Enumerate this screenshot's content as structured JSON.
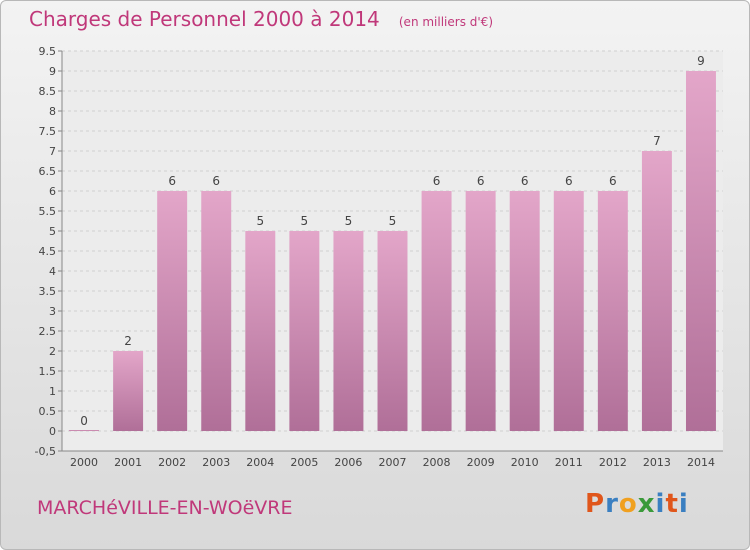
{
  "header": {
    "title": "Charges de Personnel 2000 à 2014",
    "unit": "(en milliers d'€)"
  },
  "footer": {
    "commune": "MARCHéVILLE-EN-WOëVRE",
    "logo": {
      "letters": [
        "P",
        "r",
        "o",
        "x",
        "i",
        "t",
        "i"
      ],
      "colors": [
        "#e0561b",
        "#3a7fc1",
        "#f0a020",
        "#3a9a3a",
        "#3a7fc1",
        "#e0561b",
        "#3a7fc1"
      ]
    }
  },
  "chart_data": {
    "type": "bar",
    "categories": [
      "2000",
      "2001",
      "2002",
      "2003",
      "2004",
      "2005",
      "2006",
      "2007",
      "2008",
      "2009",
      "2010",
      "2011",
      "2012",
      "2013",
      "2014"
    ],
    "values": [
      0,
      2,
      6,
      6,
      5,
      5,
      5,
      5,
      6,
      6,
      6,
      6,
      6,
      7,
      9
    ],
    "ylim": [
      -0.5,
      9.5
    ],
    "yticks": [
      "-0,5",
      "0",
      "0.5",
      "1",
      "1.5",
      "2",
      "2.5",
      "3",
      "3.5",
      "4",
      "4.5",
      "5",
      "5.5",
      "6",
      "6.5",
      "7",
      "7.5",
      "8",
      "8.5",
      "9",
      "9.5"
    ],
    "ytick_values": [
      -0.5,
      0,
      0.5,
      1,
      1.5,
      2,
      2.5,
      3,
      3.5,
      4,
      4.5,
      5,
      5.5,
      6,
      6.5,
      7,
      7.5,
      8,
      8.5,
      9,
      9.5
    ],
    "grid": true,
    "colors": {
      "bar_top": "#e3a6c9",
      "bar_bottom": "#b06f98",
      "title": "#c0387a"
    }
  }
}
